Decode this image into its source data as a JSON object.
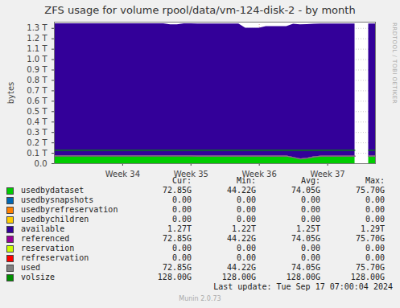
{
  "chart_data": {
    "type": "area",
    "title": "ZFS usage for volume rpool/data/vm-124-disk-2 - by month",
    "y_label": "bytes",
    "watermark": "RRDTOOL / TOBI OETIKER",
    "last_update": "Last update: Tue Sep 17 07:00:04 2024",
    "footer": "Munin 2.0.73",
    "stacked": true,
    "grid": true,
    "stats_columns": [
      "Cur:",
      "Min:",
      "Avg:",
      "Max:"
    ],
    "xlim": [
      33.5,
      38.2
    ],
    "xticks": [
      {
        "value": 34.5,
        "label": "Week 34"
      },
      {
        "value": 35.5,
        "label": "Week 35"
      },
      {
        "value": 36.5,
        "label": "Week 36"
      },
      {
        "value": 37.5,
        "label": "Week 37"
      }
    ],
    "ylim": [
      0,
      1.36
    ],
    "yticks": [
      {
        "value": 0,
        "label": "0.0"
      },
      {
        "value": 0.1,
        "label": "0.1 T"
      },
      {
        "value": 0.2,
        "label": "0.2 T"
      },
      {
        "value": 0.3,
        "label": "0.3 T"
      },
      {
        "value": 0.4,
        "label": "0.4 T"
      },
      {
        "value": 0.5,
        "label": "0.5 T"
      },
      {
        "value": 0.6,
        "label": "0.6 T"
      },
      {
        "value": 0.7,
        "label": "0.7 T"
      },
      {
        "value": 0.8,
        "label": "0.8 T"
      },
      {
        "value": 0.9,
        "label": "0.9 T"
      },
      {
        "value": 1.0,
        "label": "1.0 T"
      },
      {
        "value": 1.1,
        "label": "1.1 T"
      },
      {
        "value": 1.2,
        "label": "1.2 T"
      },
      {
        "value": 1.3,
        "label": "1.3 T"
      }
    ],
    "x": [
      33.5,
      33.6,
      33.7,
      33.8,
      33.9,
      34.0,
      34.1,
      34.2,
      34.3,
      34.4,
      34.5,
      34.6,
      34.7,
      34.8,
      34.9,
      35.0,
      35.1,
      35.2,
      35.3,
      35.4,
      35.5,
      35.6,
      35.7,
      35.8,
      35.9,
      36.0,
      36.1,
      36.2,
      36.3,
      36.4,
      36.5,
      36.6,
      36.7,
      36.8,
      36.9,
      37.0,
      37.1,
      37.2,
      37.3,
      37.4,
      37.5,
      37.6,
      37.7,
      37.8,
      37.9,
      38.0,
      38.1,
      38.2
    ],
    "series": [
      {
        "name": "usedbydataset",
        "type": "area",
        "color": "#00cc00",
        "stats": [
          "72.85G",
          "44.22G",
          "74.05G",
          "75.70G"
        ],
        "values": [
          0.074,
          0.074,
          0.074,
          0.074,
          0.074,
          0.074,
          0.074,
          0.074,
          0.074,
          0.074,
          0.074,
          0.074,
          0.074,
          0.074,
          0.074,
          0.074,
          0.074,
          0.074,
          0.074,
          0.074,
          0.074,
          0.073,
          0.073,
          0.073,
          0.073,
          0.073,
          0.073,
          0.073,
          0.073,
          0.073,
          0.073,
          0.073,
          0.073,
          0.073,
          0.073,
          0.06,
          0.045,
          0.052,
          0.065,
          0.072,
          0.072,
          0.072,
          0.072,
          0.072,
          0.072,
          null,
          0.073,
          0.073
        ]
      },
      {
        "name": "usedbysnapshots",
        "type": "area",
        "color": "#0066b3",
        "stats": [
          "0.00",
          "0.00",
          "0.00",
          "0.00"
        ],
        "values": [
          0,
          0,
          0,
          0,
          0,
          0,
          0,
          0,
          0,
          0,
          0,
          0,
          0,
          0,
          0,
          0,
          0,
          0,
          0,
          0,
          0,
          0,
          0,
          0,
          0,
          0,
          0,
          0,
          0,
          0,
          0,
          0,
          0,
          0,
          0,
          0,
          0,
          0,
          0,
          0,
          0,
          0,
          0,
          0,
          0,
          null,
          0,
          0
        ]
      },
      {
        "name": "usedbyrefreservation",
        "type": "area",
        "color": "#ff8000",
        "stats": [
          "0.00",
          "0.00",
          "0.00",
          "0.00"
        ],
        "values": [
          0,
          0,
          0,
          0,
          0,
          0,
          0,
          0,
          0,
          0,
          0,
          0,
          0,
          0,
          0,
          0,
          0,
          0,
          0,
          0,
          0,
          0,
          0,
          0,
          0,
          0,
          0,
          0,
          0,
          0,
          0,
          0,
          0,
          0,
          0,
          0,
          0,
          0,
          0,
          0,
          0,
          0,
          0,
          0,
          0,
          null,
          0,
          0
        ]
      },
      {
        "name": "usedbychildren",
        "type": "area",
        "color": "#ffcc00",
        "stats": [
          "0.00",
          "0.00",
          "0.00",
          "0.00"
        ],
        "values": [
          0,
          0,
          0,
          0,
          0,
          0,
          0,
          0,
          0,
          0,
          0,
          0,
          0,
          0,
          0,
          0,
          0,
          0,
          0,
          0,
          0,
          0,
          0,
          0,
          0,
          0,
          0,
          0,
          0,
          0,
          0,
          0,
          0,
          0,
          0,
          0,
          0,
          0,
          0,
          0,
          0,
          0,
          0,
          0,
          0,
          null,
          0,
          0
        ]
      },
      {
        "name": "available",
        "type": "area",
        "color": "#330099",
        "stats": [
          "1.27T",
          "1.22T",
          "1.25T",
          "1.29T"
        ],
        "values": [
          1.27,
          1.27,
          1.27,
          1.27,
          1.27,
          1.27,
          1.27,
          1.27,
          1.27,
          1.27,
          1.27,
          1.27,
          1.27,
          1.27,
          1.27,
          1.27,
          1.27,
          1.26,
          1.26,
          1.27,
          1.27,
          1.27,
          1.27,
          1.27,
          1.27,
          1.27,
          1.27,
          1.27,
          1.23,
          1.23,
          1.23,
          1.245,
          1.245,
          1.245,
          1.245,
          1.28,
          1.29,
          1.285,
          1.275,
          1.27,
          1.27,
          1.27,
          1.27,
          1.27,
          1.27,
          null,
          1.27,
          1.27
        ]
      },
      {
        "name": "referenced",
        "type": "line",
        "color": "#990099",
        "stats": [
          "72.85G",
          "44.22G",
          "74.05G",
          "75.70G"
        ],
        "values": [
          0.074,
          0.074,
          0.074,
          0.074,
          0.074,
          0.074,
          0.074,
          0.074,
          0.074,
          0.074,
          0.074,
          0.074,
          0.074,
          0.074,
          0.074,
          0.074,
          0.074,
          0.074,
          0.074,
          0.074,
          0.074,
          0.073,
          0.073,
          0.073,
          0.073,
          0.073,
          0.073,
          0.073,
          0.073,
          0.073,
          0.073,
          0.073,
          0.073,
          0.073,
          0.073,
          0.06,
          0.045,
          0.052,
          0.065,
          0.072,
          0.072,
          0.072,
          0.072,
          0.072,
          0.072,
          null,
          0.073,
          0.073
        ]
      },
      {
        "name": "reservation",
        "type": "line",
        "color": "#ccff00",
        "stats": [
          "0.00",
          "0.00",
          "0.00",
          "0.00"
        ],
        "values": [
          0,
          0,
          0,
          0,
          0,
          0,
          0,
          0,
          0,
          0,
          0,
          0,
          0,
          0,
          0,
          0,
          0,
          0,
          0,
          0,
          0,
          0,
          0,
          0,
          0,
          0,
          0,
          0,
          0,
          0,
          0,
          0,
          0,
          0,
          0,
          0,
          0,
          0,
          0,
          0,
          0,
          0,
          0,
          0,
          0,
          null,
          0,
          0
        ]
      },
      {
        "name": "refreservation",
        "type": "line",
        "color": "#ff0000",
        "stats": [
          "0.00",
          "0.00",
          "0.00",
          "0.00"
        ],
        "values": [
          0,
          0,
          0,
          0,
          0,
          0,
          0,
          0,
          0,
          0,
          0,
          0,
          0,
          0,
          0,
          0,
          0,
          0,
          0,
          0,
          0,
          0,
          0,
          0,
          0,
          0,
          0,
          0,
          0,
          0,
          0,
          0,
          0,
          0,
          0,
          0,
          0,
          0,
          0,
          0,
          0,
          0,
          0,
          0,
          0,
          null,
          0,
          0
        ]
      },
      {
        "name": "used",
        "type": "line",
        "color": "#808080",
        "stats": [
          "72.85G",
          "44.22G",
          "74.05G",
          "75.70G"
        ],
        "values": [
          0.074,
          0.074,
          0.074,
          0.074,
          0.074,
          0.074,
          0.074,
          0.074,
          0.074,
          0.074,
          0.074,
          0.074,
          0.074,
          0.074,
          0.074,
          0.074,
          0.074,
          0.074,
          0.074,
          0.074,
          0.074,
          0.073,
          0.073,
          0.073,
          0.073,
          0.073,
          0.073,
          0.073,
          0.073,
          0.073,
          0.073,
          0.073,
          0.073,
          0.073,
          0.073,
          0.06,
          0.045,
          0.052,
          0.065,
          0.072,
          0.072,
          0.072,
          0.072,
          0.072,
          0.072,
          null,
          0.073,
          0.073
        ]
      },
      {
        "name": "volsize",
        "type": "line",
        "color": "#008f00",
        "stats": [
          "128.00G",
          "128.00G",
          "128.00G",
          "128.00G"
        ],
        "values": [
          0.128,
          0.128,
          0.128,
          0.128,
          0.128,
          0.128,
          0.128,
          0.128,
          0.128,
          0.128,
          0.128,
          0.128,
          0.128,
          0.128,
          0.128,
          0.128,
          0.128,
          0.128,
          0.128,
          0.128,
          0.128,
          0.128,
          0.128,
          0.128,
          0.128,
          0.128,
          0.128,
          0.128,
          0.128,
          0.128,
          0.128,
          0.128,
          0.128,
          0.128,
          0.128,
          0.128,
          0.128,
          0.128,
          0.128,
          0.128,
          0.128,
          0.128,
          0.128,
          0.128,
          0.128,
          null,
          0.128,
          0.128
        ]
      }
    ]
  }
}
